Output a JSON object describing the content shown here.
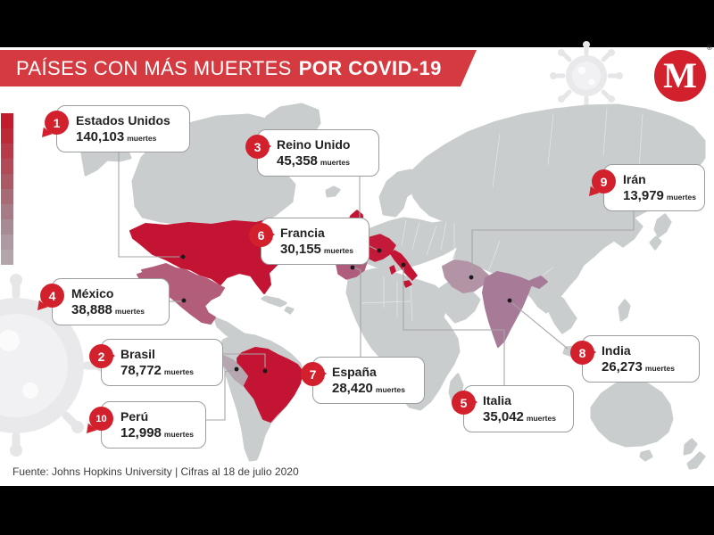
{
  "header": {
    "title_regular": "PAÍSES CON MÁS MUERTES",
    "title_bold": "POR COVID-19",
    "logo_letter": "M",
    "logo_registered": "®"
  },
  "countries": [
    {
      "rank": 1,
      "name": "Estados Unidos",
      "deaths": "140,103",
      "unit": "muertes"
    },
    {
      "rank": 2,
      "name": "Brasil",
      "deaths": "78,772",
      "unit": "muertes"
    },
    {
      "rank": 3,
      "name": "Reino Unido",
      "deaths": "45,358",
      "unit": "muertes"
    },
    {
      "rank": 4,
      "name": "México",
      "deaths": "38,888",
      "unit": "muertes"
    },
    {
      "rank": 5,
      "name": "Italia",
      "deaths": "35,042",
      "unit": "muertes"
    },
    {
      "rank": 6,
      "name": "Francia",
      "deaths": "30,155",
      "unit": "muertes"
    },
    {
      "rank": 7,
      "name": "España",
      "deaths": "28,420",
      "unit": "muertes"
    },
    {
      "rank": 8,
      "name": "India",
      "deaths": "26,273",
      "unit": "muertes"
    },
    {
      "rank": 9,
      "name": "Irán",
      "deaths": "13,979",
      "unit": "muertes"
    },
    {
      "rank": 10,
      "name": "Perú",
      "deaths": "12,998",
      "unit": "muertes"
    }
  ],
  "legend": {
    "colors": [
      "#c11c2e",
      "#bc2a3a",
      "#b63a48",
      "#b04a57",
      "#ab5a65",
      "#a76b75",
      "#a57b85",
      "#a78b94",
      "#ac99a1",
      "#b2a6ab"
    ]
  },
  "colors": {
    "banner_red": "#d43a40",
    "badge_red": "#d2202c",
    "map_gray": "#c9cdce",
    "dot_black": "#1a1a1a",
    "country_fills": {
      "usa": "#c41434",
      "mexico": "#b25e7b",
      "brazil": "#c41434",
      "peru": "#b5a6af",
      "uk": "#c41434",
      "france": "#c21a38",
      "spain": "#ae5d7c",
      "italy": "#c41434",
      "iran": "#b294a6",
      "india": "#a77b97"
    }
  },
  "footer": {
    "source": "Fuente: Johns Hopkins University | Cifras al 18 de julio 2020"
  }
}
